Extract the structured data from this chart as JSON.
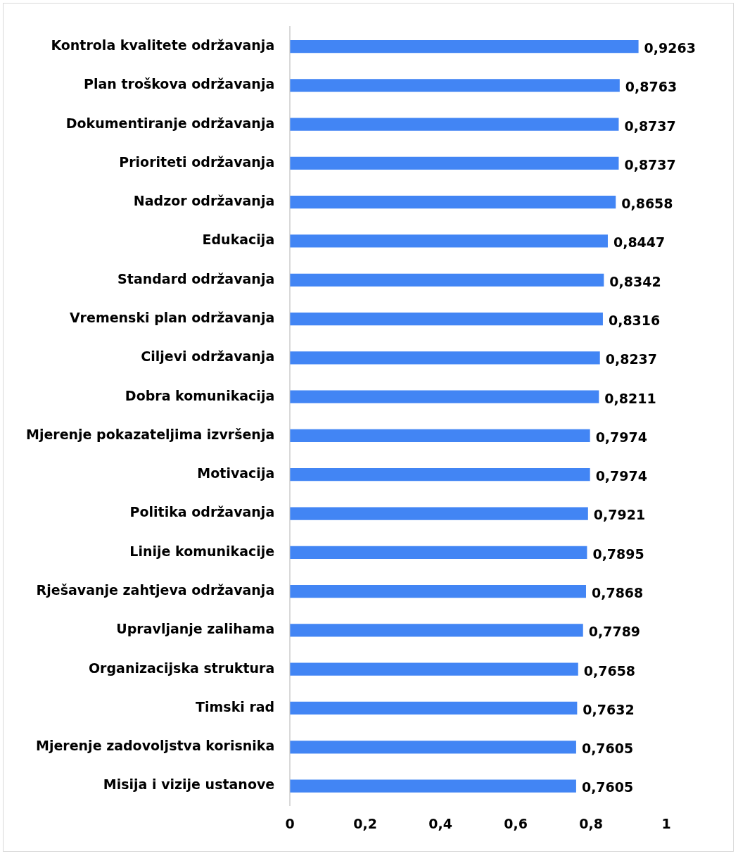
{
  "chart_data": {
    "type": "bar",
    "orientation": "horizontal",
    "categories": [
      "Kontrola kvalitete održavanja",
      "Plan troškova održavanja",
      "Dokumentiranje održavanja",
      "Prioriteti održavanja",
      "Nadzor održavanja",
      "Edukacija",
      "Standard održavanja",
      "Vremenski plan održavanja",
      "Ciljevi održavanja",
      "Dobra komunikacija",
      "Mjerenje pokazateljima izvršenja",
      "Motivacija",
      "Politika održavanja",
      "Linije komunikacije",
      "Rješavanje zahtjeva održavanja",
      "Upravljanje zalihama",
      "Organizacijska struktura",
      "Timski rad",
      "Mjerenje zadovoljstva korisnika",
      "Misija i vizije ustanove"
    ],
    "values": [
      0.9263,
      0.8763,
      0.8737,
      0.8737,
      0.8658,
      0.8447,
      0.8342,
      0.8316,
      0.8237,
      0.8211,
      0.7974,
      0.7974,
      0.7921,
      0.7895,
      0.7868,
      0.7789,
      0.7658,
      0.7632,
      0.7605,
      0.7605
    ],
    "value_labels": [
      "0,9263",
      "0,8763",
      "0,8737",
      "0,8737",
      "0,8658",
      "0,8447",
      "0,8342",
      "0,8316",
      "0,8237",
      "0,8211",
      "0,7974",
      "0,7974",
      "0,7921",
      "0,7895",
      "0,7868",
      "0,7789",
      "0,7658",
      "0,7632",
      "0,7605",
      "0,7605"
    ],
    "color": "#4285f4",
    "xlim": [
      0,
      1
    ],
    "xticks": [
      0,
      {
        "value": 0.2,
        "label": "0,2"
      },
      {
        "value": 0.4,
        "label": "0,4"
      },
      {
        "value": 0.6,
        "label": "0,6"
      },
      {
        "value": 0.8,
        "label": "0,8"
      },
      1
    ],
    "grid": false,
    "legend": false
  }
}
